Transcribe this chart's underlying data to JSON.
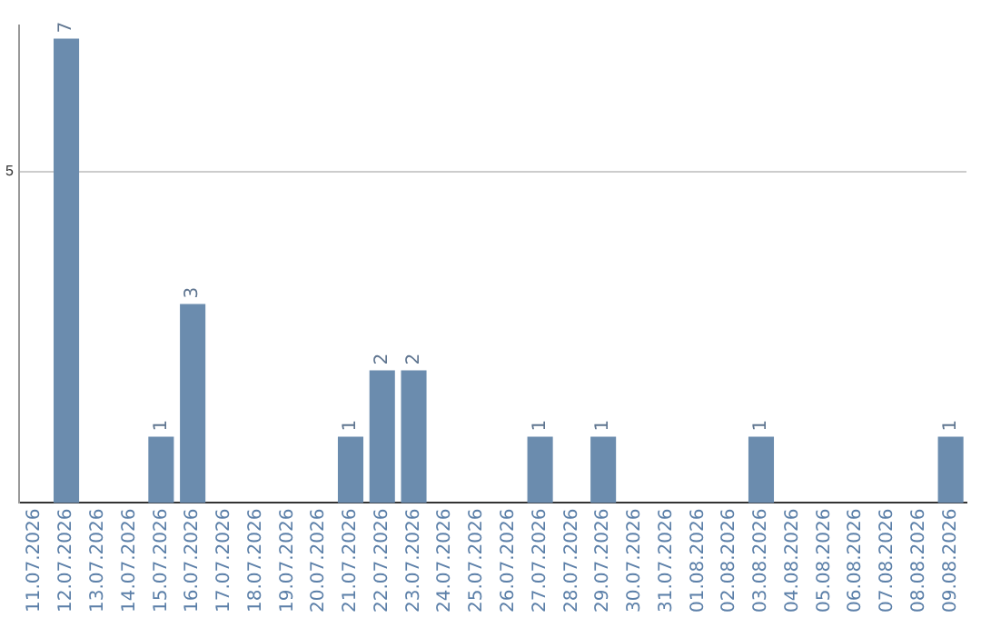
{
  "chart_data": {
    "type": "bar",
    "categories": [
      "11.07.2026",
      "12.07.2026",
      "13.07.2026",
      "14.07.2026",
      "15.07.2026",
      "16.07.2026",
      "17.07.2026",
      "18.07.2026",
      "19.07.2026",
      "20.07.2026",
      "21.07.2026",
      "22.07.2026",
      "23.07.2026",
      "24.07.2026",
      "25.07.2026",
      "26.07.2026",
      "27.07.2026",
      "28.07.2026",
      "29.07.2026",
      "30.07.2026",
      "31.07.2026",
      "01.08.2026",
      "02.08.2026",
      "03.08.2026",
      "04.08.2026",
      "05.08.2026",
      "06.08.2026",
      "07.08.2026",
      "08.08.2026",
      "09.08.2026"
    ],
    "values": [
      0,
      7,
      0,
      0,
      1,
      3,
      0,
      0,
      0,
      0,
      1,
      2,
      2,
      0,
      0,
      0,
      1,
      0,
      1,
      0,
      0,
      0,
      0,
      1,
      0,
      0,
      0,
      0,
      0,
      1
    ],
    "color": "#6b8cae",
    "value_labels": [
      null,
      "7",
      null,
      null,
      "1",
      "3",
      null,
      null,
      null,
      null,
      "1",
      "2",
      "2",
      null,
      null,
      null,
      "1",
      null,
      "1",
      null,
      null,
      null,
      null,
      "1",
      null,
      null,
      null,
      null,
      null,
      "1"
    ],
    "ylim": [
      0,
      7.2
    ],
    "yticks": [
      5
    ],
    "grid": "y",
    "legend": false
  }
}
